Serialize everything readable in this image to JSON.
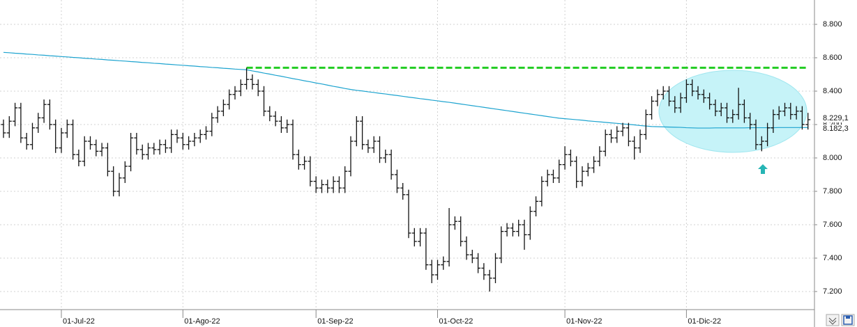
{
  "chart_data": {
    "type": "ohlc",
    "ylim": [
      7091.7,
      8945.8
    ],
    "yticks": [
      {
        "value": 7200,
        "label": "7.200"
      },
      {
        "value": 7400,
        "label": "7.400"
      },
      {
        "value": 7600,
        "label": "7.600"
      },
      {
        "value": 7800,
        "label": "7.800"
      },
      {
        "value": 8000,
        "label": "8.000"
      },
      {
        "value": 8200,
        "label": "8.200"
      },
      {
        "value": 8400,
        "label": "8.400"
      },
      {
        "value": 8600,
        "label": "8.600"
      },
      {
        "value": 8800,
        "label": "8.800"
      }
    ],
    "grid": true,
    "color": "#111111",
    "categories": [
      null,
      null,
      null,
      null,
      null,
      null,
      null,
      null,
      null,
      null,
      "01-Jul-22",
      null,
      null,
      null,
      null,
      null,
      null,
      null,
      null,
      null,
      null,
      null,
      null,
      null,
      null,
      null,
      null,
      null,
      null,
      null,
      null,
      "01-Ago-22",
      null,
      null,
      null,
      null,
      null,
      null,
      null,
      null,
      null,
      null,
      null,
      null,
      null,
      null,
      null,
      null,
      null,
      null,
      null,
      null,
      null,
      null,
      "01-Sep-22",
      null,
      null,
      null,
      null,
      null,
      null,
      null,
      null,
      null,
      null,
      null,
      null,
      null,
      null,
      null,
      null,
      null,
      null,
      null,
      null,
      "01-Oct-22",
      null,
      null,
      null,
      null,
      null,
      null,
      null,
      null,
      null,
      null,
      null,
      null,
      null,
      null,
      null,
      null,
      null,
      null,
      null,
      null,
      null,
      "01-Nov-22",
      null,
      null,
      null,
      null,
      null,
      null,
      null,
      null,
      null,
      null,
      null,
      null,
      null,
      null,
      null,
      null,
      null,
      null,
      null,
      null,
      "01-Dic-22",
      null,
      null,
      null,
      null,
      null,
      null,
      null,
      null,
      null,
      null,
      null,
      null,
      null,
      null,
      null,
      null,
      null,
      null,
      null,
      null,
      null
    ],
    "open": [
      8200,
      8150,
      8220,
      8300,
      8120,
      8080,
      8180,
      8240,
      8320,
      8200,
      8060,
      8150,
      8200,
      8020,
      7980,
      8100,
      8080,
      8040,
      8060,
      7920,
      7800,
      7880,
      7950,
      8120,
      8050,
      8020,
      8060,
      8050,
      8080,
      8060,
      8140,
      8120,
      8080,
      8100,
      8120,
      8140,
      8160,
      8240,
      8280,
      8320,
      8380,
      8400,
      8440,
      8470,
      8440,
      8400,
      8280,
      8250,
      8220,
      8180,
      8200,
      8020,
      7960,
      7980,
      7860,
      7820,
      7840,
      7820,
      7860,
      7820,
      7920,
      8100,
      8220,
      8080,
      8060,
      8100,
      8000,
      8020,
      7900,
      7820,
      7780,
      7550,
      7500,
      7550,
      7360,
      7300,
      7360,
      7380,
      7600,
      7620,
      7500,
      7420,
      7400,
      7340,
      7300,
      7280,
      7400,
      7560,
      7580,
      7560,
      7600,
      7540,
      7680,
      7740,
      7860,
      7900,
      7880,
      7960,
      8020,
      7980,
      7860,
      7920,
      7940,
      7980,
      8040,
      8140,
      8120,
      8160,
      8180,
      8100,
      8060,
      8140,
      8260,
      8340,
      8380,
      8400,
      8340,
      8300,
      8360,
      8440,
      8400,
      8380,
      8360,
      8320,
      8280,
      8300,
      8240,
      8260,
      8320,
      8240,
      8200,
      8080,
      8100,
      8180,
      8260,
      8280,
      8300,
      8260,
      8280,
      8200
    ],
    "high": [
      8230,
      8250,
      8330,
      8330,
      8150,
      8210,
      8270,
      8350,
      8350,
      8230,
      8180,
      8230,
      8230,
      8050,
      8130,
      8130,
      8110,
      8090,
      8090,
      7950,
      7910,
      7980,
      8150,
      8150,
      8080,
      8090,
      8090,
      8110,
      8110,
      8170,
      8170,
      8150,
      8130,
      8150,
      8170,
      8190,
      8270,
      8310,
      8350,
      8410,
      8430,
      8470,
      8540,
      8500,
      8470,
      8430,
      8310,
      8280,
      8250,
      8230,
      8230,
      8050,
      8010,
      8010,
      7890,
      7870,
      7870,
      7890,
      7890,
      7950,
      8130,
      8250,
      8250,
      8110,
      8130,
      8130,
      8050,
      8050,
      7930,
      7850,
      7810,
      7580,
      7580,
      7580,
      7390,
      7390,
      7410,
      7700,
      7650,
      7650,
      7530,
      7450,
      7430,
      7370,
      7330,
      7430,
      7590,
      7610,
      7610,
      7630,
      7630,
      7710,
      7770,
      7890,
      7930,
      7930,
      7990,
      8070,
      8050,
      8010,
      7950,
      7970,
      8010,
      8070,
      8170,
      8170,
      8190,
      8210,
      8210,
      8130,
      8170,
      8290,
      8370,
      8410,
      8430,
      8430,
      8370,
      8390,
      8470,
      8470,
      8430,
      8410,
      8390,
      8350,
      8330,
      8330,
      8290,
      8420,
      8350,
      8270,
      8230,
      8130,
      8210,
      8290,
      8310,
      8330,
      8330,
      8310,
      8310,
      8270
    ],
    "low": [
      8120,
      8120,
      8190,
      8090,
      8050,
      8050,
      8150,
      8210,
      8170,
      8030,
      8030,
      8120,
      7990,
      7950,
      7950,
      8050,
      8010,
      8010,
      7890,
      7770,
      7770,
      7850,
      7920,
      8020,
      7990,
      7990,
      8020,
      8020,
      8030,
      8030,
      8090,
      8050,
      8050,
      8070,
      8090,
      8110,
      8130,
      8210,
      8250,
      8290,
      8350,
      8370,
      8410,
      8410,
      8370,
      8250,
      8220,
      8190,
      8150,
      8150,
      7990,
      7930,
      7930,
      7830,
      7790,
      7790,
      7790,
      7790,
      7790,
      7790,
      7890,
      8070,
      8050,
      8030,
      8030,
      7970,
      7970,
      7870,
      7790,
      7750,
      7520,
      7470,
      7470,
      7330,
      7250,
      7270,
      7330,
      7350,
      7570,
      7470,
      7390,
      7370,
      7310,
      7270,
      7200,
      7250,
      7370,
      7530,
      7530,
      7530,
      7450,
      7510,
      7650,
      7710,
      7830,
      7850,
      7850,
      7930,
      7950,
      7820,
      7830,
      7890,
      7910,
      7950,
      8010,
      8090,
      8090,
      8130,
      8070,
      7990,
      8030,
      8110,
      8230,
      8310,
      8350,
      8310,
      8270,
      8270,
      8330,
      8370,
      8350,
      8330,
      8290,
      8250,
      8250,
      8210,
      8210,
      8230,
      8210,
      8170,
      8050,
      8040,
      8070,
      8150,
      8230,
      8250,
      8230,
      8230,
      8170,
      8170
    ],
    "close": [
      8150,
      8220,
      8300,
      8120,
      8080,
      8180,
      8240,
      8320,
      8200,
      8060,
      8150,
      8200,
      8020,
      7980,
      8100,
      8080,
      8040,
      8060,
      7920,
      7800,
      7880,
      7950,
      8120,
      8050,
      8020,
      8060,
      8050,
      8080,
      8060,
      8140,
      8120,
      8080,
      8100,
      8120,
      8140,
      8160,
      8240,
      8280,
      8320,
      8380,
      8400,
      8440,
      8470,
      8440,
      8400,
      8280,
      8250,
      8220,
      8180,
      8200,
      8020,
      7960,
      7980,
      7860,
      7820,
      7840,
      7820,
      7860,
      7820,
      7920,
      8100,
      8220,
      8080,
      8060,
      8100,
      8000,
      8020,
      7900,
      7820,
      7780,
      7550,
      7500,
      7550,
      7360,
      7300,
      7360,
      7380,
      7600,
      7620,
      7500,
      7420,
      7400,
      7340,
      7300,
      7280,
      7400,
      7560,
      7580,
      7560,
      7600,
      7540,
      7680,
      7740,
      7860,
      7900,
      7880,
      7960,
      8020,
      7980,
      7860,
      7920,
      7940,
      7980,
      8040,
      8140,
      8120,
      8160,
      8180,
      8100,
      8060,
      8140,
      8260,
      8340,
      8380,
      8400,
      8340,
      8300,
      8360,
      8440,
      8400,
      8380,
      8360,
      8320,
      8280,
      8300,
      8240,
      8260,
      8320,
      8240,
      8200,
      8080,
      8100,
      8180,
      8260,
      8280,
      8300,
      8260,
      8280,
      8200,
      8229.1
    ],
    "moving_average": {
      "color": "#1ca3cf",
      "values": [
        8632,
        8630,
        8627,
        8625,
        8622,
        8620,
        8617,
        8615,
        8612,
        8610,
        8607,
        8605,
        8602,
        8600,
        8597,
        8595,
        8592,
        8590,
        8587,
        8585,
        8582,
        8580,
        8577,
        8575,
        8572,
        8570,
        8567,
        8565,
        8562,
        8560,
        8557,
        8555,
        8552,
        8550,
        8547,
        8545,
        8542,
        8540,
        8537,
        8535,
        8532,
        8530,
        8528,
        8521,
        8515,
        8508,
        8502,
        8495,
        8489,
        8482,
        8475,
        8469,
        8462,
        8456,
        8449,
        8443,
        8436,
        8429,
        8423,
        8416,
        8410,
        8405,
        8401,
        8396,
        8392,
        8387,
        8383,
        8378,
        8374,
        8369,
        8364,
        8360,
        8355,
        8351,
        8346,
        8342,
        8337,
        8333,
        8328,
        8323,
        8318,
        8313,
        8308,
        8303,
        8298,
        8293,
        8288,
        8283,
        8278,
        8273,
        8268,
        8263,
        8258,
        8253,
        8248,
        8243,
        8238,
        8235,
        8232,
        8229,
        8226,
        8222,
        8219,
        8216,
        8213,
        8210,
        8207,
        8204,
        8201,
        8198,
        8194,
        8191,
        8188,
        8187,
        8186,
        8185,
        8184,
        8183,
        8181,
        8180,
        8179,
        8179,
        8179,
        8180,
        8180,
        8180,
        8180,
        8180,
        8180,
        8181,
        8181,
        8181,
        8181,
        8181,
        8182,
        8182,
        8182,
        8182,
        8182,
        8182.3
      ]
    },
    "resistance": {
      "value": 8540,
      "color": "#22cc22"
    },
    "last_labels": [
      {
        "value": 8229.1,
        "label": "8.229,1"
      },
      {
        "value": 8182.3,
        "label": "8.182,3"
      }
    ]
  }
}
